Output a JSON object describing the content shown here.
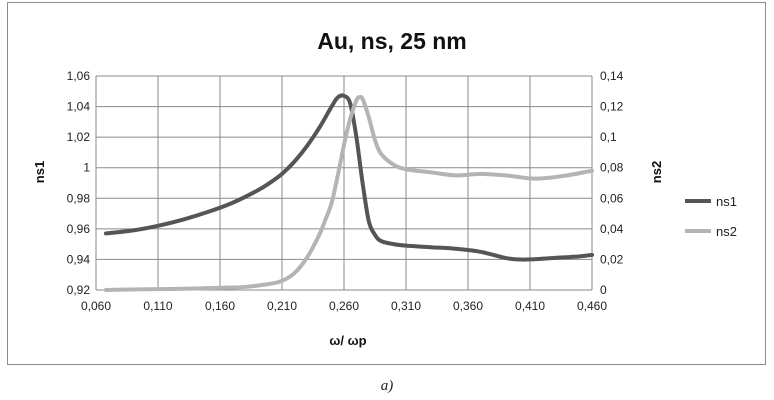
{
  "caption": "a)",
  "chart_data": {
    "type": "line",
    "title": "Au, ns, 25 nm",
    "xlabel": "ω/ ωp",
    "ylabel": "ns1",
    "y2label": "ns2",
    "xlim": [
      0.06,
      0.46
    ],
    "ylim": [
      0.92,
      1.06
    ],
    "y2lim": [
      0,
      0.14
    ],
    "xticks": [
      "0,060",
      "0,110",
      "0,160",
      "0,210",
      "0,260",
      "0,310",
      "0,360",
      "0,410",
      "0,460"
    ],
    "xtick_values": [
      0.06,
      0.11,
      0.16,
      0.21,
      0.26,
      0.31,
      0.36,
      0.41,
      0.46
    ],
    "yticks": [
      "0,92",
      "0,94",
      "0,96",
      "0,98",
      "1",
      "1,02",
      "1,04",
      "1,06"
    ],
    "ytick_values": [
      0.92,
      0.94,
      0.96,
      0.98,
      1.0,
      1.02,
      1.04,
      1.06
    ],
    "y2ticks": [
      "0",
      "0,02",
      "0,04",
      "0,06",
      "0,08",
      "0,1",
      "0,12",
      "0,14"
    ],
    "y2tick_values": [
      0,
      0.02,
      0.04,
      0.06,
      0.08,
      0.1,
      0.12,
      0.14
    ],
    "grid": true,
    "legend_position": "right",
    "series": [
      {
        "name": "ns1",
        "axis": "left",
        "color": "#555555",
        "x": [
          0.068,
          0.09,
          0.11,
          0.13,
          0.15,
          0.17,
          0.19,
          0.2,
          0.21,
          0.22,
          0.23,
          0.24,
          0.25,
          0.255,
          0.26,
          0.265,
          0.27,
          0.275,
          0.28,
          0.285,
          0.29,
          0.3,
          0.31,
          0.33,
          0.35,
          0.37,
          0.39,
          0.4,
          0.41,
          0.43,
          0.45,
          0.46
        ],
        "y": [
          0.957,
          0.959,
          0.962,
          0.966,
          0.971,
          0.977,
          0.985,
          0.99,
          0.996,
          1.004,
          1.014,
          1.026,
          1.04,
          1.046,
          1.047,
          1.042,
          1.02,
          0.99,
          0.965,
          0.956,
          0.952,
          0.95,
          0.949,
          0.948,
          0.947,
          0.945,
          0.941,
          0.94,
          0.94,
          0.941,
          0.942,
          0.943
        ]
      },
      {
        "name": "ns2",
        "axis": "right",
        "color": "#b4b4b4",
        "x": [
          0.068,
          0.1,
          0.13,
          0.16,
          0.18,
          0.2,
          0.21,
          0.22,
          0.23,
          0.24,
          0.245,
          0.25,
          0.255,
          0.26,
          0.265,
          0.27,
          0.272,
          0.275,
          0.28,
          0.285,
          0.29,
          0.3,
          0.31,
          0.33,
          0.35,
          0.37,
          0.39,
          0.4,
          0.41,
          0.42,
          0.44,
          0.46
        ],
        "y": [
          0.0,
          0.0005,
          0.0008,
          0.0015,
          0.002,
          0.004,
          0.006,
          0.011,
          0.021,
          0.036,
          0.046,
          0.057,
          0.075,
          0.095,
          0.112,
          0.124,
          0.126,
          0.125,
          0.113,
          0.098,
          0.089,
          0.082,
          0.079,
          0.077,
          0.075,
          0.076,
          0.075,
          0.074,
          0.073,
          0.073,
          0.075,
          0.078
        ]
      }
    ]
  }
}
